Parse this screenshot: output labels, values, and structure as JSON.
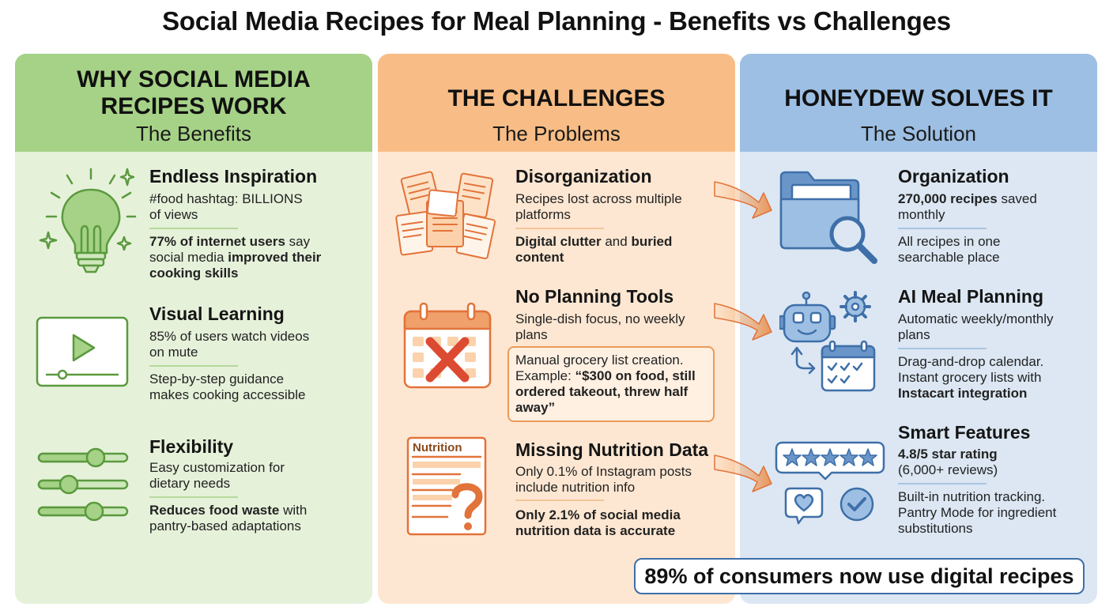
{
  "title": "Social Media Recipes for Meal Planning - Benefits vs Challenges",
  "benefits": {
    "heading_line1": "WHY SOCIAL MEDIA",
    "heading_line2": "RECIPES WORK",
    "subheading": "The Benefits",
    "color": "#a6d287",
    "sections": [
      {
        "icon": "lightbulb-icon",
        "title": "Endless Inspiration",
        "line1": "#food hashtag: BILLIONS",
        "line2": "of views",
        "b_bold1": "77% of internet users",
        "b_text1": " say",
        "b_text2": "social media ",
        "b_bold2": "improved their",
        "b_bold3": "cooking skills"
      },
      {
        "icon": "video-play-icon",
        "title": "Visual Learning",
        "line1": "85% of users watch videos",
        "line2": "on mute",
        "b_line1": "Step-by-step guidance",
        "b_line2": "makes cooking accessible"
      },
      {
        "icon": "sliders-icon",
        "title": "Flexibility",
        "line1": "Easy customization for",
        "line2": "dietary needs",
        "b_bold1": "Reduces food waste",
        "b_text1": " with",
        "b_line2": "pantry-based adaptations"
      }
    ]
  },
  "challenges": {
    "heading": "THE CHALLENGES",
    "subheading": "The Problems",
    "color": "#f8bd86",
    "sections": [
      {
        "icon": "scattered-documents-icon",
        "title": "Disorganization",
        "line1": "Recipes lost across multiple",
        "line2": "platforms",
        "b_bold1": "Digital clutter",
        "b_text1": " and ",
        "b_bold2": "buried",
        "b_bold3": "content"
      },
      {
        "icon": "calendar-x-icon",
        "title": "No Planning Tools",
        "line1": "Single-dish focus, no weekly",
        "line2": "plans",
        "q_line1": "Manual grocery list creation.",
        "q_text2": "Example: ",
        "q_bold2": "“$300 on food, still",
        "q_bold3": "ordered takeout, threw half",
        "q_bold4": "away”"
      },
      {
        "icon": "nutrition-question-icon",
        "icon_label": "Nutrition",
        "title": "Missing Nutrition Data",
        "line1": "Only 0.1% of Instagram posts",
        "line2": "include nutrition info",
        "b_bold1": "Only 2.1% of social media",
        "b_bold2": "nutrition data is accurate"
      }
    ]
  },
  "solution": {
    "heading": "HONEYDEW SOLVES IT",
    "subheading": "The Solution",
    "color": "#9dbfe3",
    "sections": [
      {
        "icon": "folder-search-icon",
        "title": "Organization",
        "bold1": "270,000 recipes",
        "text1": " saved",
        "line2": "monthly",
        "b_line1": "All recipes in one",
        "b_line2": "searchable place"
      },
      {
        "icon": "robot-calendar-icon",
        "title": "AI Meal Planning",
        "line1": "Automatic weekly/monthly",
        "line2": "plans",
        "b_line1": "Drag-and-drop calendar.",
        "b_line2": "Instant grocery lists with",
        "b_bold3": "Instacart integration"
      },
      {
        "icon": "star-rating-icon",
        "title": "Smart Features",
        "bold1": "4.8/5 star rating",
        "line2": "(6,000+ reviews)",
        "b_line1": "Built-in nutrition tracking.",
        "b_line2": "Pantry Mode for ingredient",
        "b_line3": "substitutions"
      }
    ],
    "banner": "89% of consumers now use digital recipes"
  },
  "colors": {
    "green_icon": "#5a9a3e",
    "orange_icon": "#e2733a",
    "blue_icon": "#3e6fa8",
    "red_x": "#dd4a32"
  }
}
